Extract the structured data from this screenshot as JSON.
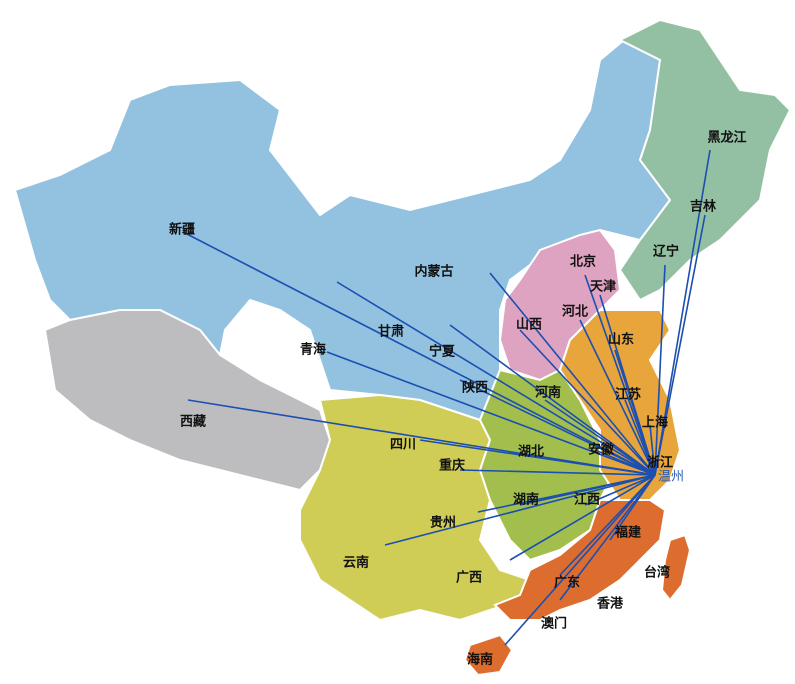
{
  "hub": "温州",
  "regions": [
    "新疆",
    "西藏",
    "青海",
    "甘肃",
    "内蒙古",
    "宁夏",
    "陕西",
    "山西",
    "河北",
    "北京",
    "天津",
    "辽宁",
    "吉林",
    "黑龙江",
    "山东",
    "河南",
    "江苏",
    "上海",
    "安徽",
    "湖北",
    "四川",
    "重庆",
    "浙江",
    "湖南",
    "江西",
    "贵州",
    "福建",
    "云南",
    "广西",
    "广东",
    "台湾",
    "香港",
    "澳门",
    "海南"
  ]
}
